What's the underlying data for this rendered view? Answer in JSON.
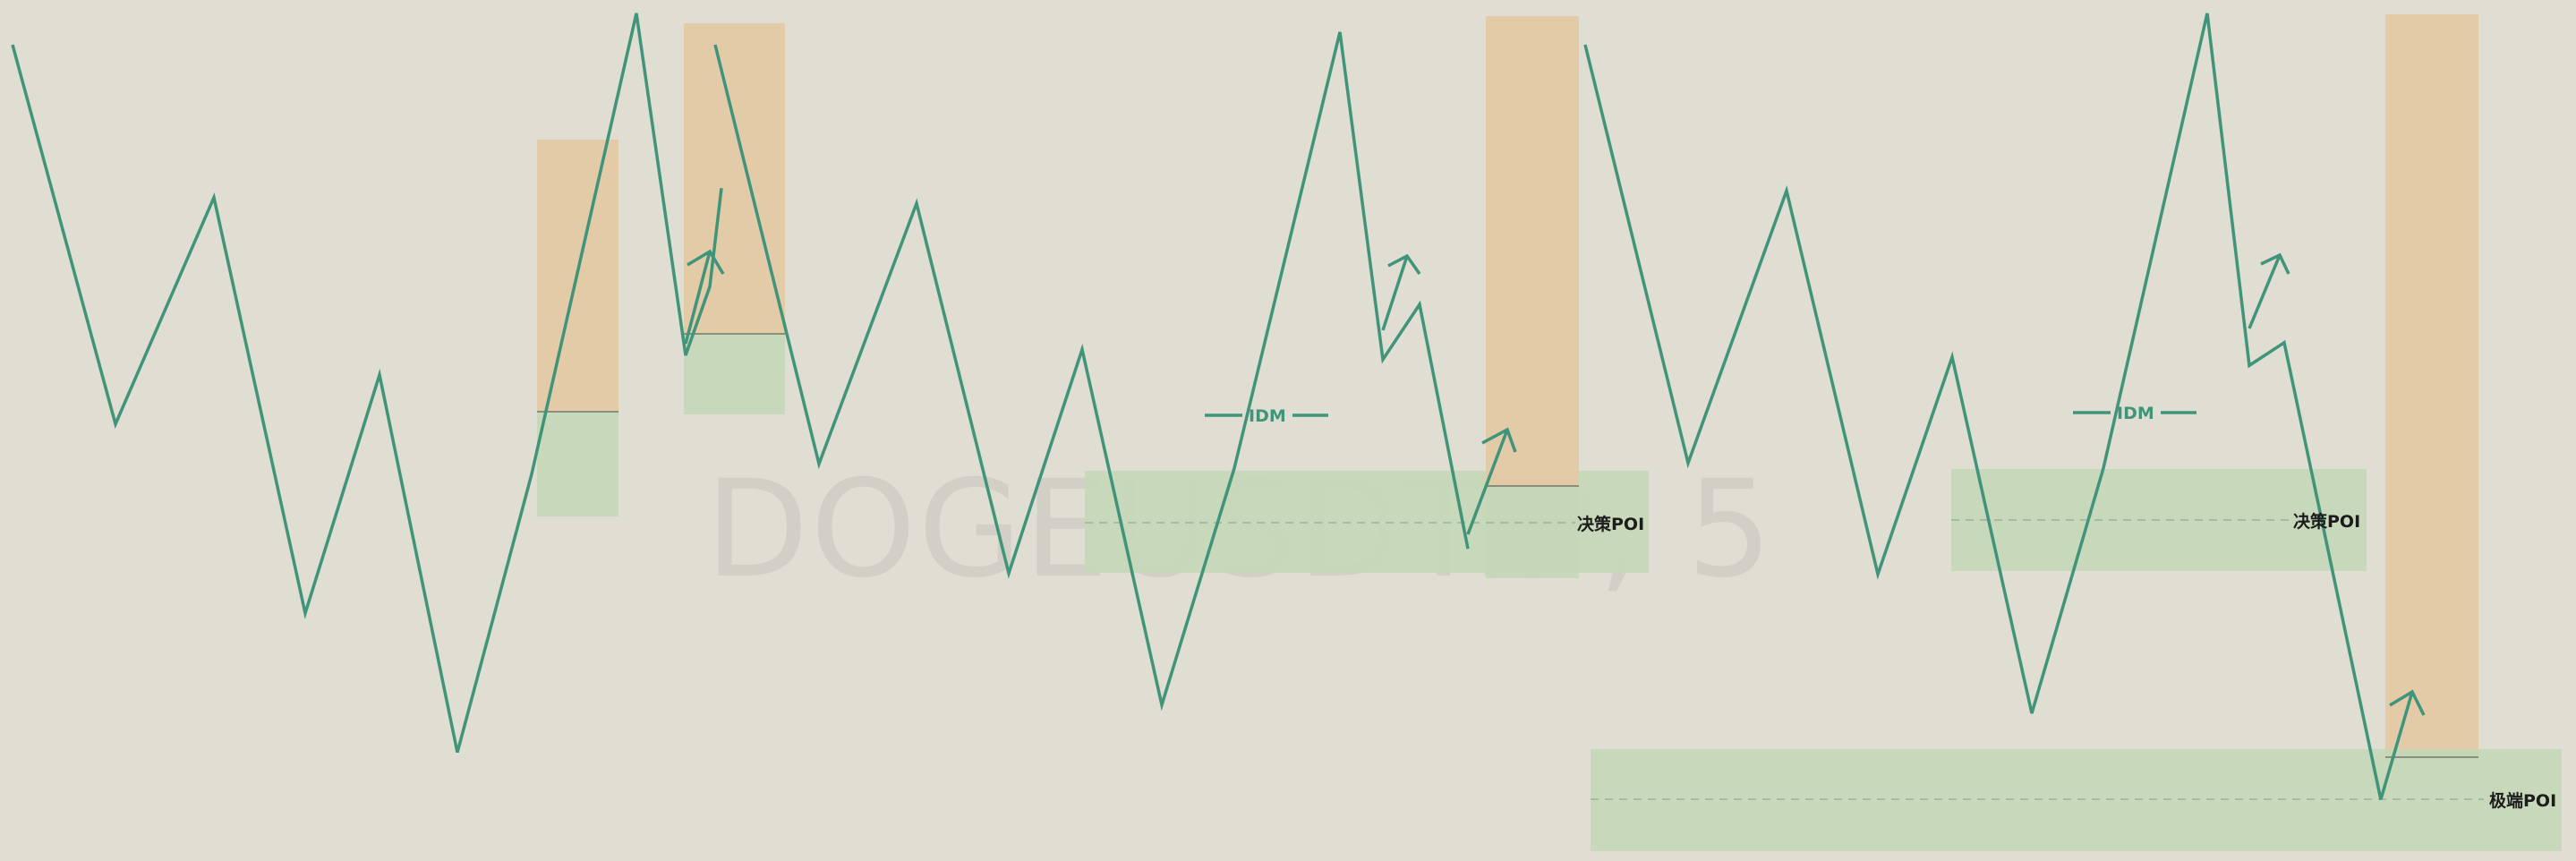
{
  "watermark": "DOGEUSDT.P, 5",
  "colors": {
    "background": "#e0ddd3",
    "line": "#3f9479",
    "supply_zone": "#e3c9a3",
    "demand_zone": "#c5d7b7",
    "label": "#1c1c1c",
    "dashed": "#96b39a",
    "watermark": "#d2cfc6"
  },
  "labels": {
    "idm": "IDM",
    "decision_poi": "决策POI",
    "extreme_poi": "极端POI"
  },
  "chart_data": {
    "type": "line",
    "title": "",
    "xlabel": "",
    "ylabel": "",
    "grid": false,
    "legend": "none",
    "panels": [
      {
        "name": "",
        "series": [
          {
            "values": [
              962,
              515,
              782,
              292,
              573,
              128,
              456,
              999,
              596,
              677,
              793
            ]
          }
        ],
        "annotations": []
      },
      {
        "name": "",
        "series": [
          {
            "values": [
              962,
              468,
              775,
              339,
              603,
              184,
              463,
              977,
              591,
              656,
              368
            ]
          }
        ],
        "annotations": [
          "IDM",
          "决策POI"
        ]
      },
      {
        "name": "",
        "series": [
          {
            "values": [
              962,
              469,
              790,
              338,
              594,
              174,
              463,
              999,
              584,
              611,
              72
            ]
          }
        ],
        "annotations": [
          "IDM",
          "决策POI",
          "极端POI"
        ]
      }
    ]
  }
}
